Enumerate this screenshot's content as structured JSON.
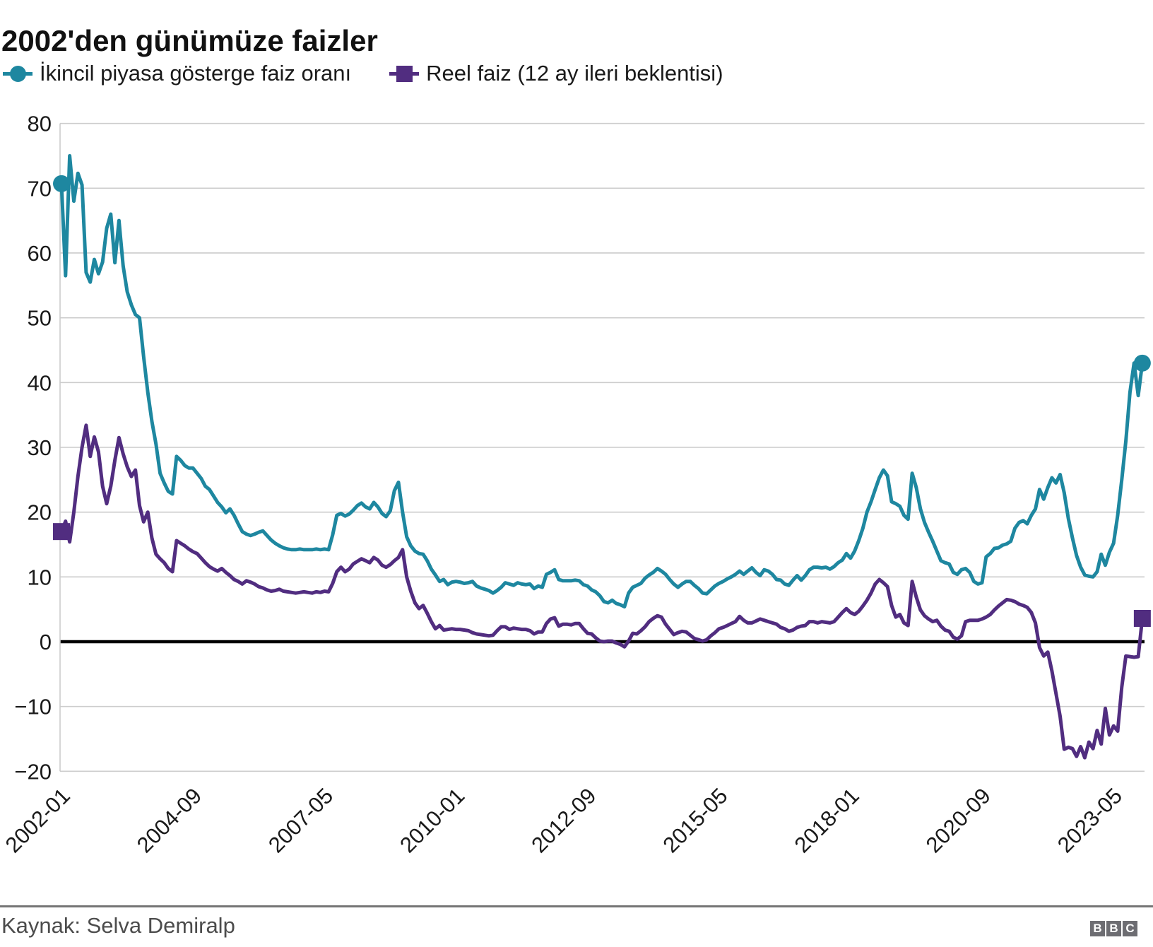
{
  "header": {
    "title": "2002'den günümüze faizler"
  },
  "legend": {
    "items": [
      {
        "label": "İkincil piyasa gösterge faiz oranı",
        "marker": "circle",
        "color": "#1e87a0"
      },
      {
        "label": "Reel faiz (12 ay ileri beklentisi)",
        "marker": "square",
        "color": "#512d80"
      }
    ]
  },
  "footer": {
    "source": "Kaynak: Selva Demiralp",
    "logo_letters": [
      "B",
      "B",
      "C"
    ]
  },
  "chart_data": {
    "type": "line",
    "title": "2002'den günümüze faizler",
    "x_start": "2002-01",
    "x_frequency": "monthly",
    "x_tick_labels": [
      "2002-01",
      "2004-09",
      "2007-05",
      "2010-01",
      "2012-09",
      "2015-05",
      "2018-01",
      "2020-09",
      "2023-05"
    ],
    "x_tick_month_indices": [
      0,
      32,
      64,
      96,
      128,
      160,
      192,
      224,
      256
    ],
    "y_ticks": [
      80,
      70,
      60,
      50,
      40,
      30,
      20,
      10,
      0,
      -10,
      -20
    ],
    "ylim": [
      -20,
      80
    ],
    "grid": true,
    "zero_line": true,
    "legend_position": "top",
    "colors": {
      "grid": "#cccccc",
      "zero_line": "#000000",
      "axis_text": "#1a1a1a"
    },
    "series": [
      {
        "name": "İkincil piyasa gösterge faiz oranı",
        "color": "#1e87a0",
        "marker": "circle",
        "endpoint_markers": true,
        "values": [
          70.7,
          56.5,
          75.0,
          68.0,
          72.3,
          70.5,
          57.0,
          55.5,
          59.0,
          56.8,
          58.6,
          63.8,
          66.0,
          58.5,
          65.0,
          58.0,
          54.0,
          52.0,
          50.5,
          50.0,
          44.0,
          38.5,
          34.0,
          30.5,
          26.0,
          24.5,
          23.2,
          22.8,
          28.6,
          28.0,
          27.2,
          26.8,
          26.8,
          26.0,
          25.2,
          24.0,
          23.5,
          22.5,
          21.5,
          20.8,
          19.9,
          20.5,
          19.5,
          18.2,
          17.0,
          16.6,
          16.4,
          16.6,
          16.9,
          17.1,
          16.4,
          15.7,
          15.2,
          14.8,
          14.5,
          14.3,
          14.2,
          14.2,
          14.3,
          14.2,
          14.2,
          14.2,
          14.3,
          14.2,
          14.3,
          14.2,
          16.5,
          19.5,
          19.8,
          19.4,
          19.7,
          20.3,
          21.0,
          21.4,
          20.8,
          20.5,
          21.5,
          20.8,
          19.8,
          19.3,
          20.2,
          23.3,
          24.6,
          20.0,
          16.2,
          14.8,
          14.0,
          13.6,
          13.5,
          12.5,
          11.2,
          10.3,
          9.3,
          9.6,
          8.8,
          9.2,
          9.3,
          9.2,
          9.0,
          9.1,
          9.3,
          8.6,
          8.3,
          8.1,
          7.9,
          7.5,
          7.9,
          8.4,
          9.1,
          8.9,
          8.7,
          9.1,
          8.9,
          8.8,
          8.9,
          8.2,
          8.6,
          8.4,
          10.4,
          10.7,
          11.1,
          9.6,
          9.4,
          9.4,
          9.4,
          9.5,
          9.4,
          8.8,
          8.6,
          8.0,
          7.7,
          7.1,
          6.2,
          6.0,
          6.4,
          5.9,
          5.7,
          5.4,
          7.5,
          8.4,
          8.7,
          9.0,
          9.8,
          10.3,
          10.7,
          11.3,
          10.9,
          10.4,
          9.6,
          8.9,
          8.4,
          8.9,
          9.3,
          9.3,
          8.7,
          8.2,
          7.5,
          7.4,
          8.0,
          8.6,
          9.0,
          9.3,
          9.7,
          10.0,
          10.4,
          10.9,
          10.4,
          10.9,
          11.4,
          10.7,
          10.2,
          11.1,
          10.9,
          10.4,
          9.6,
          9.5,
          8.9,
          8.7,
          9.5,
          10.2,
          9.5,
          10.2,
          11.1,
          11.5,
          11.5,
          11.4,
          11.5,
          11.2,
          11.6,
          12.2,
          12.6,
          13.6,
          12.9,
          14.0,
          15.6,
          17.5,
          20.0,
          21.6,
          23.5,
          25.3,
          26.5,
          25.6,
          21.6,
          21.3,
          20.9,
          19.5,
          18.9,
          26.0,
          23.8,
          20.5,
          18.4,
          16.9,
          15.5,
          14.0,
          12.5,
          12.2,
          12.0,
          10.7,
          10.4,
          11.1,
          11.3,
          10.7,
          9.3,
          8.9,
          9.1,
          13.1,
          13.6,
          14.4,
          14.5,
          14.9,
          15.1,
          15.5,
          17.5,
          18.4,
          18.7,
          18.2,
          19.5,
          20.5,
          23.5,
          22.0,
          23.8,
          25.3,
          24.5,
          25.8,
          23.0,
          19.0,
          16.0,
          13.3,
          11.5,
          10.3,
          10.1,
          10.0,
          10.8,
          13.5,
          11.8,
          13.8,
          15.2,
          19.5,
          25.0,
          31.0,
          38.5,
          43.0,
          38.0,
          43.0
        ]
      },
      {
        "name": "Reel faiz (12 ay ileri beklentisi)",
        "color": "#512d80",
        "marker": "square",
        "endpoint_markers": true,
        "values": [
          17.0,
          18.6,
          15.4,
          20.0,
          25.5,
          30.0,
          33.4,
          28.6,
          31.6,
          29.3,
          24.0,
          21.3,
          24.0,
          28.0,
          31.5,
          29.0,
          27.0,
          25.5,
          26.5,
          21.0,
          18.5,
          20.0,
          16.0,
          13.5,
          12.8,
          12.2,
          11.3,
          10.8,
          15.6,
          15.2,
          14.8,
          14.3,
          13.9,
          13.6,
          12.9,
          12.2,
          11.6,
          11.2,
          10.9,
          11.3,
          10.7,
          10.2,
          9.6,
          9.3,
          8.9,
          9.4,
          9.2,
          8.9,
          8.5,
          8.3,
          8.0,
          7.8,
          7.9,
          8.1,
          7.8,
          7.7,
          7.6,
          7.5,
          7.6,
          7.7,
          7.6,
          7.5,
          7.7,
          7.6,
          7.8,
          7.7,
          9.0,
          10.8,
          11.5,
          10.8,
          11.2,
          12.0,
          12.4,
          12.8,
          12.5,
          12.2,
          13.0,
          12.6,
          11.8,
          11.5,
          11.9,
          12.5,
          13.0,
          14.2,
          10.0,
          7.8,
          6.0,
          5.1,
          5.6,
          4.4,
          3.1,
          2.0,
          2.5,
          1.8,
          1.9,
          2.0,
          1.9,
          1.9,
          1.8,
          1.7,
          1.4,
          1.2,
          1.1,
          1.0,
          0.9,
          1.0,
          1.7,
          2.3,
          2.3,
          1.9,
          2.1,
          2.0,
          1.9,
          1.9,
          1.7,
          1.2,
          1.5,
          1.5,
          2.8,
          3.5,
          3.7,
          2.4,
          2.7,
          2.7,
          2.6,
          2.8,
          2.8,
          2.0,
          1.3,
          1.2,
          0.6,
          0.1,
          0.0,
          0.1,
          0.1,
          -0.2,
          -0.4,
          -0.8,
          0.1,
          1.3,
          1.2,
          1.7,
          2.3,
          3.1,
          3.6,
          4.0,
          3.8,
          2.7,
          1.9,
          1.1,
          1.4,
          1.6,
          1.5,
          1.0,
          0.5,
          0.3,
          0.1,
          0.3,
          0.9,
          1.4,
          2.0,
          2.2,
          2.5,
          2.8,
          3.1,
          3.9,
          3.3,
          2.9,
          2.9,
          3.2,
          3.5,
          3.3,
          3.1,
          2.9,
          2.7,
          2.2,
          2.0,
          1.6,
          1.8,
          2.2,
          2.4,
          2.5,
          3.1,
          3.1,
          2.9,
          3.1,
          3.0,
          2.9,
          3.1,
          3.8,
          4.5,
          5.1,
          4.5,
          4.2,
          4.7,
          5.5,
          6.4,
          7.5,
          8.9,
          9.6,
          9.1,
          8.5,
          5.6,
          3.8,
          4.2,
          2.9,
          2.5,
          9.3,
          6.9,
          4.9,
          4.0,
          3.5,
          3.1,
          3.3,
          2.4,
          1.8,
          1.6,
          0.7,
          0.4,
          0.9,
          3.1,
          3.3,
          3.3,
          3.3,
          3.5,
          3.8,
          4.2,
          4.9,
          5.5,
          6.0,
          6.5,
          6.4,
          6.2,
          5.8,
          5.6,
          5.3,
          4.5,
          2.9,
          -0.9,
          -2.2,
          -1.6,
          -4.5,
          -8.0,
          -11.5,
          -16.6,
          -16.3,
          -16.5,
          -17.7,
          -16.2,
          -17.9,
          -15.5,
          -16.5,
          -13.7,
          -15.8,
          -10.3,
          -14.4,
          -13.0,
          -13.8,
          -7.0,
          -2.2,
          -2.3,
          -2.4,
          -2.3,
          3.6
        ]
      }
    ]
  }
}
